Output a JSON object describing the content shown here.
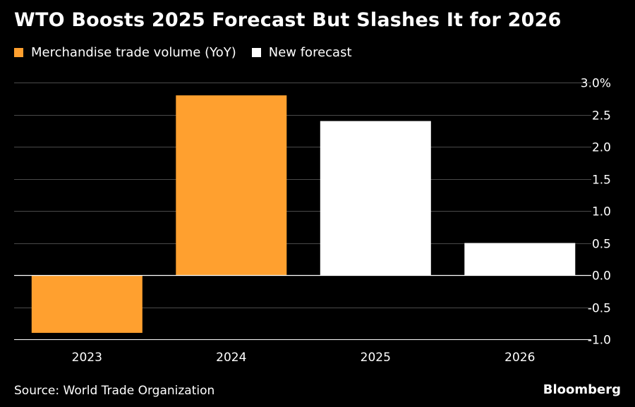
{
  "colors": {
    "background": "#000000",
    "orange": "#ffa02f",
    "white": "#ffffff",
    "grid": "#4a4a4a",
    "axis": "#ffffff"
  },
  "header": {
    "title": "WTO Boosts 2025 Forecast But Slashes It for 2026"
  },
  "legend": [
    {
      "label": "Merchandise trade volume (YoY)",
      "color": "#ffa02f"
    },
    {
      "label": "New forecast",
      "color": "#ffffff"
    }
  ],
  "footer": {
    "source": "Source: World Trade Organization",
    "brand": "Bloomberg"
  },
  "chart_data": {
    "type": "bar",
    "title": "WTO Boosts 2025 Forecast But Slashes It for 2026",
    "categories": [
      "2023",
      "2024",
      "2025",
      "2026"
    ],
    "values": [
      -0.9,
      2.8,
      2.4,
      0.5
    ],
    "series_of_bar": [
      "Merchandise trade volume (YoY)",
      "Merchandise trade volume (YoY)",
      "New forecast",
      "New forecast"
    ],
    "bar_colors": [
      "#ffa02f",
      "#ffa02f",
      "#ffffff",
      "#ffffff"
    ],
    "ylim": [
      -1.0,
      3.0
    ],
    "yticks": [
      3.0,
      2.5,
      2.0,
      1.5,
      1.0,
      0.5,
      0.0,
      -0.5,
      -1.0
    ],
    "ytick_labels": [
      "3.0%",
      "2.5",
      "2.0",
      "1.5",
      "1.0",
      "0.5",
      "0.0",
      "-0.5",
      "-1.0"
    ],
    "xlabel": "",
    "ylabel": "",
    "y_axis_side": "right",
    "grid": true
  }
}
